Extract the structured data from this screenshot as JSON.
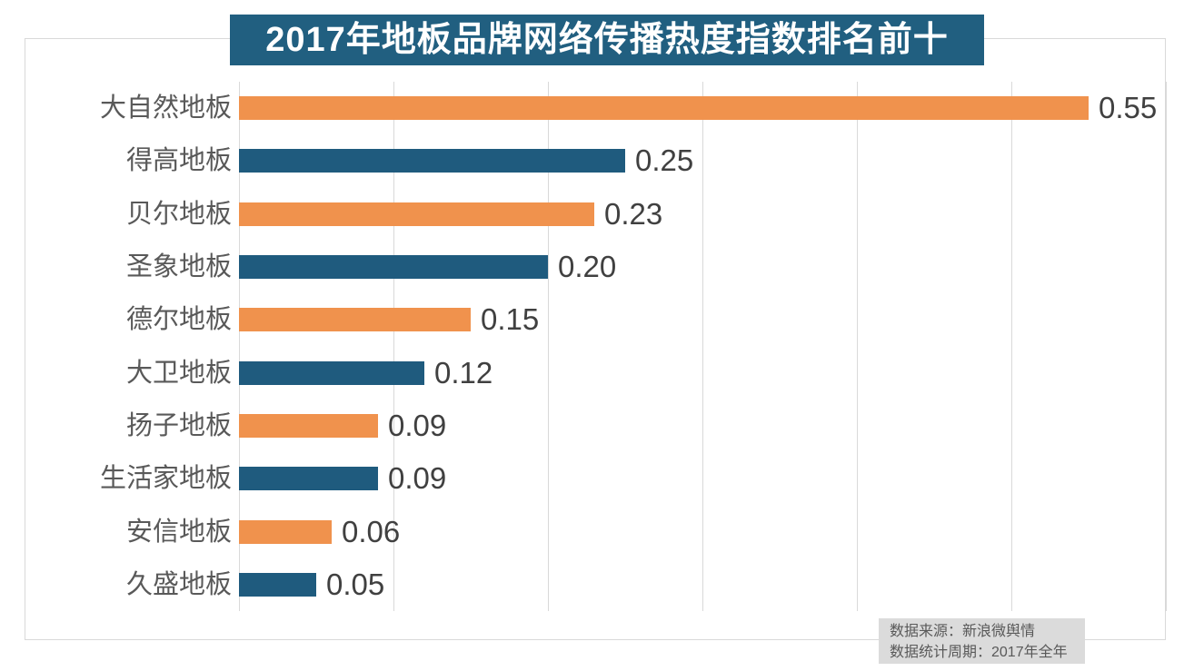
{
  "title": "2017年地板品牌网络传播热度指数排名前十",
  "chart_data": {
    "type": "bar",
    "orientation": "horizontal",
    "title": "2017年地板品牌网络传播热度指数排名前十",
    "categories": [
      "大自然地板",
      "得高地板",
      "贝尔地板",
      "圣象地板",
      "德尔地板",
      "大卫地板",
      "扬子地板",
      "生活家地板",
      "安信地板",
      "久盛地板"
    ],
    "values": [
      0.55,
      0.25,
      0.23,
      0.2,
      0.15,
      0.12,
      0.09,
      0.09,
      0.06,
      0.05
    ],
    "value_labels": [
      "0.55",
      "0.25",
      "0.23",
      "0.20",
      "0.15",
      "0.12",
      "0.09",
      "0.09",
      "0.06",
      "0.05"
    ],
    "xlim": [
      0,
      0.6
    ],
    "gridline_interval": 0.1,
    "grid": true,
    "legend": "none",
    "bar_color_odd_rows": "#f0924d",
    "bar_color_even_rows": "#1f5b7e"
  },
  "source_note": {
    "line1": "数据来源：新浪微舆情",
    "line2": "数据统计周期：2017年全年"
  },
  "colors": {
    "title_background": "#215f80",
    "title_text": "#ffffff",
    "bar_orange": "#f0924d",
    "bar_blue": "#1f5b7e",
    "gridline": "#d9d9d9",
    "frame_border": "#d9d9d9",
    "category_text": "#595959",
    "value_text": "#404040",
    "note_background": "#dbdbdb",
    "note_text": "#595959"
  }
}
